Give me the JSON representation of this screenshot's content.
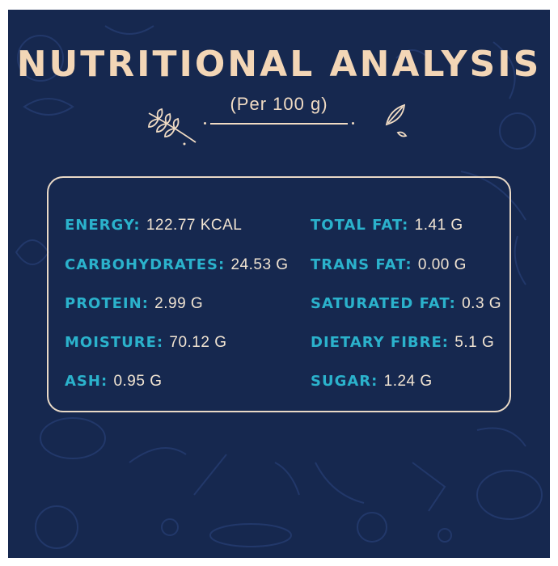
{
  "header": {
    "title": "NUTRITIONAL ANALYSIS",
    "subtitle": "(Per 100 g)"
  },
  "colors": {
    "background": "#16284f",
    "title": "#f3d6b6",
    "label": "#2bb2cc",
    "value": "#f1e4d2",
    "card_border": "#e9d9c6"
  },
  "left_column": [
    {
      "label": "ENERGY:",
      "value": "122.77 KCAL"
    },
    {
      "label": "CARBOHYDRATES:",
      "value": "24.53 G"
    },
    {
      "label": "PROTEIN:",
      "value": "2.99 G"
    },
    {
      "label": "MOISTURE:",
      "value": "70.12 G"
    },
    {
      "label": "ASH:",
      "value": "0.95 G"
    }
  ],
  "right_column": [
    {
      "label": "TOTAL FAT:",
      "value": "1.41 G"
    },
    {
      "label": "TRANS FAT:",
      "value": "0.00 G"
    },
    {
      "label": "SATURATED FAT:",
      "value": "0.3 G"
    },
    {
      "label": "DIETARY FIBRE:",
      "value": "5.1 G"
    },
    {
      "label": "SUGAR:",
      "value": "1.24 G"
    }
  ],
  "decor": {
    "left_ornament": "wheat-sprig-icon",
    "right_ornament": "leaves-icon",
    "background_pattern": "food-doodles"
  }
}
